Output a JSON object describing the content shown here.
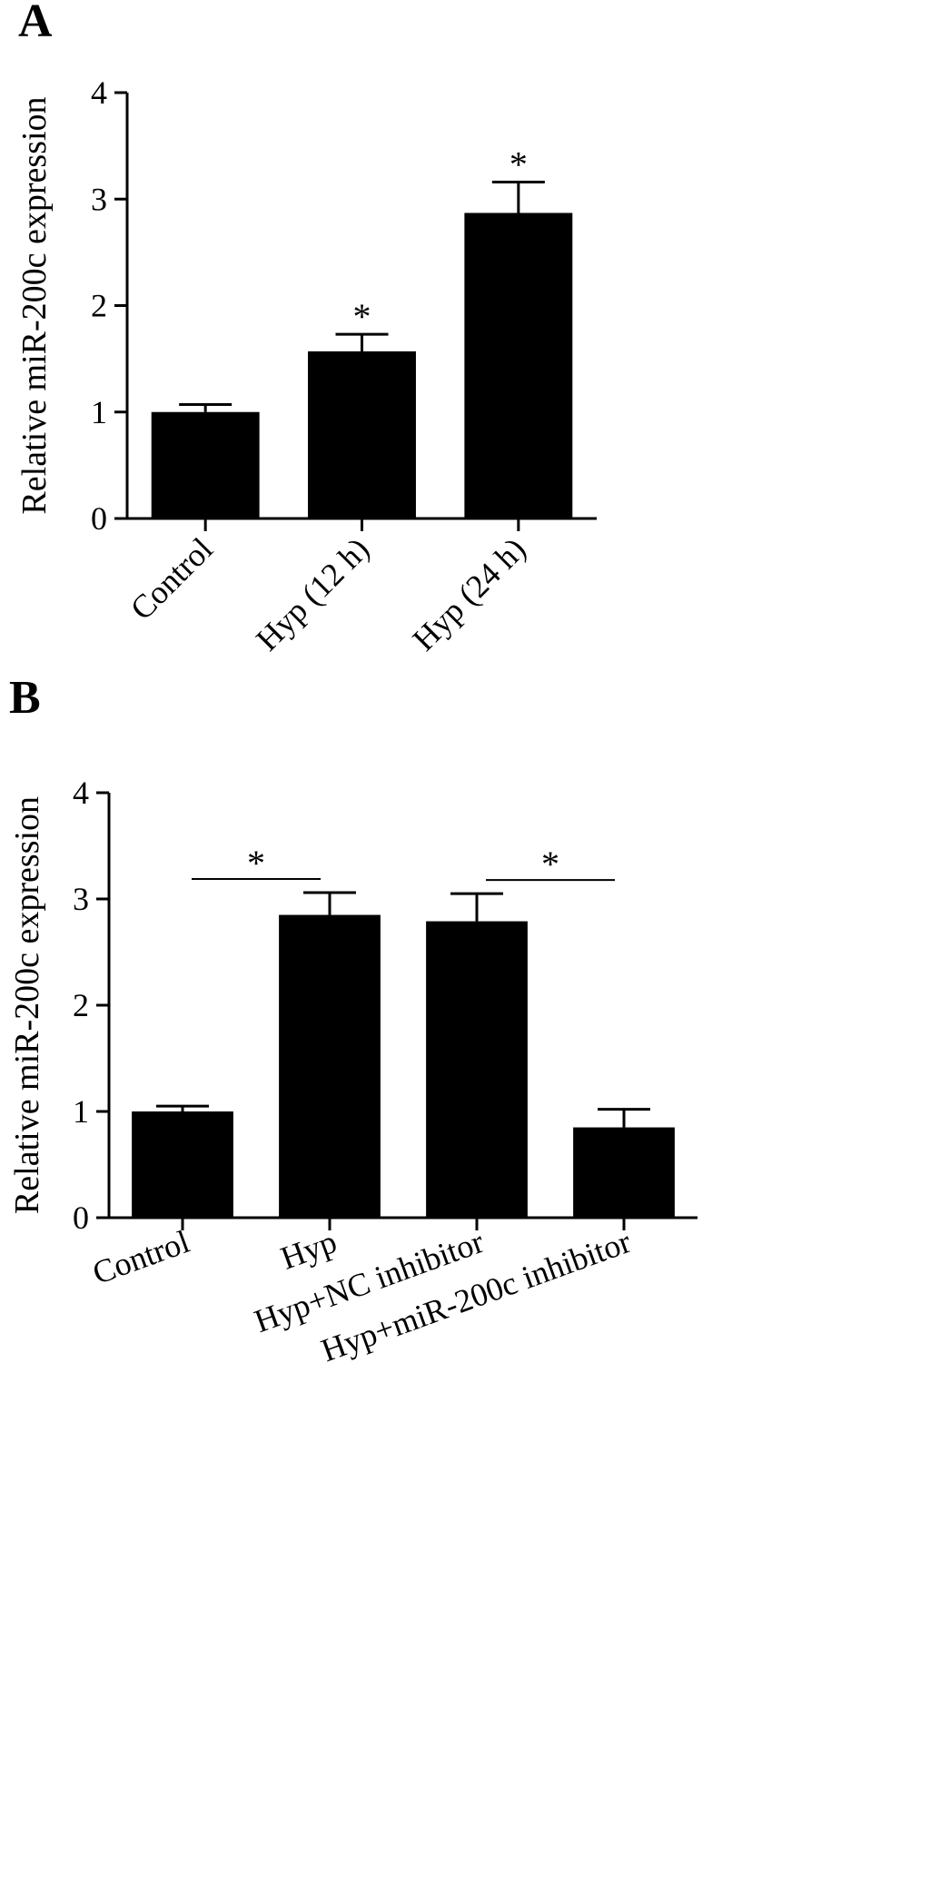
{
  "chart_data": [
    {
      "type": "bar",
      "panel": "A",
      "y_label": "Relative miR-200c expression",
      "categories": [
        "Control",
        "Hyp (12 h)",
        "Hyp (24 h)"
      ],
      "values": [
        1.0,
        1.57,
        2.87
      ],
      "errors": [
        0.07,
        0.16,
        0.29
      ],
      "significance": [
        null,
        "*",
        "*"
      ],
      "color": "#000000",
      "ylim": [
        0,
        4
      ],
      "yticks": [
        0,
        1,
        2,
        3,
        4
      ]
    },
    {
      "type": "bar",
      "panel": "B",
      "y_label": "Relative miR-200c expression",
      "categories": [
        "Control",
        "Hyp",
        "Hyp+NC inhibitor",
        "Hyp+miR-200c inhibitor"
      ],
      "values": [
        1.0,
        2.85,
        2.79,
        0.85
      ],
      "errors": [
        0.05,
        0.21,
        0.26,
        0.17
      ],
      "comparisons": [
        {
          "label": "*",
          "from": "Control",
          "to": "Hyp"
        },
        {
          "label": "*",
          "from": "Hyp+NC inhibitor",
          "to": "Hyp+miR-200c inhibitor"
        }
      ],
      "color": "#000000",
      "ylim": [
        0,
        4
      ],
      "yticks": [
        0,
        1,
        2,
        3,
        4
      ]
    }
  ]
}
